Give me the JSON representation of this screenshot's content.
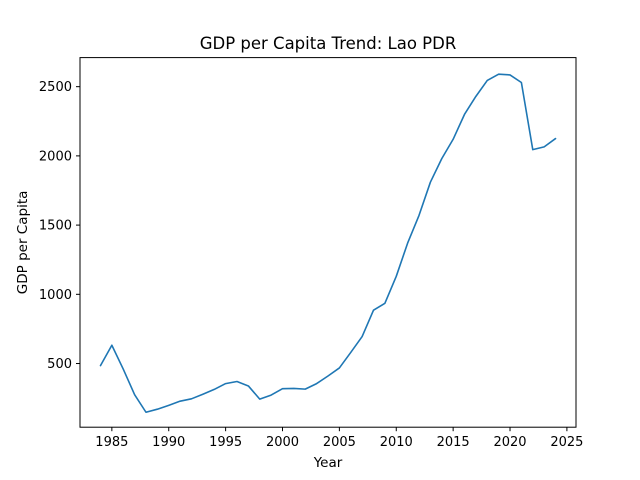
{
  "chart_data": {
    "type": "line",
    "title": "GDP per Capita Trend: Lao PDR",
    "xlabel": "Year",
    "ylabel": "GDP per Capita",
    "xlim": [
      1982.2,
      2025.8
    ],
    "ylim": [
      40,
      2710
    ],
    "xticks": [
      1985,
      1990,
      1995,
      2000,
      2005,
      2010,
      2015,
      2020,
      2025
    ],
    "yticks": [
      500,
      1000,
      1500,
      2000,
      2500
    ],
    "grid": false,
    "legend": "none",
    "series": [
      {
        "color": "#1f77b4",
        "x": [
          1984,
          1985,
          1986,
          1987,
          1988,
          1989,
          1990,
          1991,
          1992,
          1993,
          1994,
          1995,
          1996,
          1997,
          1998,
          1999,
          2000,
          2001,
          2002,
          2003,
          2004,
          2005,
          2006,
          2007,
          2008,
          2009,
          2010,
          2011,
          2012,
          2013,
          2014,
          2015,
          2016,
          2017,
          2018,
          2019,
          2020,
          2021,
          2022,
          2023,
          2024
        ],
        "values": [
          485,
          632,
          460,
          275,
          148,
          170,
          198,
          228,
          245,
          278,
          313,
          355,
          370,
          338,
          243,
          272,
          318,
          320,
          315,
          355,
          410,
          468,
          580,
          695,
          885,
          935,
          1130,
          1370,
          1570,
          1810,
          1980,
          2120,
          2300,
          2430,
          2545,
          2590,
          2585,
          2530,
          2045,
          2065,
          2125
        ]
      }
    ]
  }
}
